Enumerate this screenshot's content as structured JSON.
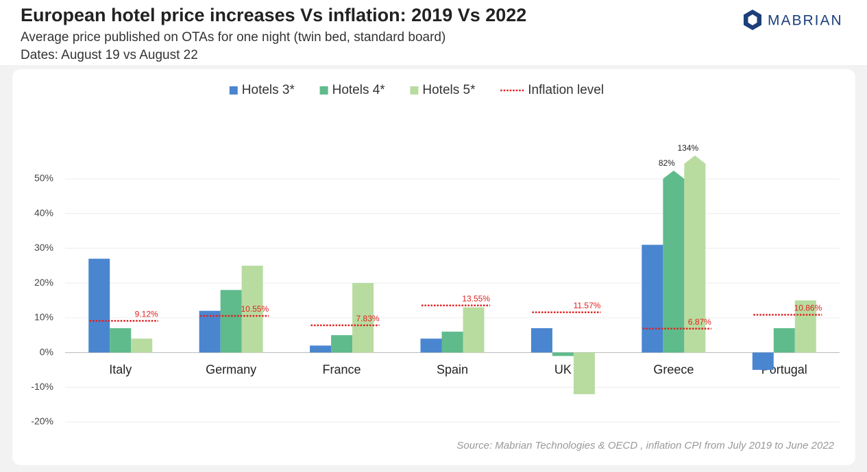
{
  "chart_data": {
    "type": "bar",
    "title": "European hotel price increases Vs inflation: 2019 Vs 2022",
    "subtitle": "Average price published on OTAs for one night (twin bed, standard board)",
    "dates": "Dates: August 19 vs August 22",
    "logo": "MABRIAN",
    "source": "Source: Mabrian Technologies & OECD , inflation CPI from July 2019 to June 2022",
    "categories": [
      "Italy",
      "Germany",
      "France",
      "Spain",
      "UK",
      "Greece",
      "Portugal"
    ],
    "series": [
      {
        "name": "Hotels 3*",
        "color": "#4a86d0",
        "values": [
          27,
          12,
          2,
          4,
          7,
          31,
          -5
        ]
      },
      {
        "name": "Hotels 4*",
        "color": "#5fbb8c",
        "values": [
          7,
          18,
          5,
          6,
          -1,
          82,
          7
        ],
        "value_labels": [
          null,
          null,
          null,
          null,
          null,
          "82%",
          null
        ]
      },
      {
        "name": "Hotels 5*",
        "color": "#b8dca0",
        "values": [
          4,
          25,
          20,
          13,
          -12,
          134,
          15
        ],
        "value_labels": [
          null,
          null,
          null,
          null,
          null,
          "134%",
          null
        ]
      },
      {
        "name": "Inflation level",
        "color": "#e02020",
        "line_style": "dotted",
        "values": [
          9.12,
          10.55,
          7.83,
          13.55,
          11.57,
          6.87,
          10.86
        ],
        "value_labels": [
          "9.12%",
          "10.55%",
          "7.83%",
          "13.55%",
          "11.57%",
          "6.87%",
          "10.86%"
        ]
      }
    ],
    "ylim": [
      -20,
      50
    ],
    "yticks": [
      {
        "value": -20,
        "label": "-20%"
      },
      {
        "value": -10,
        "label": "-10%"
      },
      {
        "value": 0,
        "label": "0%"
      },
      {
        "value": 10,
        "label": "10%"
      },
      {
        "value": 20,
        "label": "20%"
      },
      {
        "value": 30,
        "label": "30%"
      },
      {
        "value": 40,
        "label": "40%"
      },
      {
        "value": 50,
        "label": "50%"
      }
    ],
    "grid": true,
    "legend": "top"
  }
}
